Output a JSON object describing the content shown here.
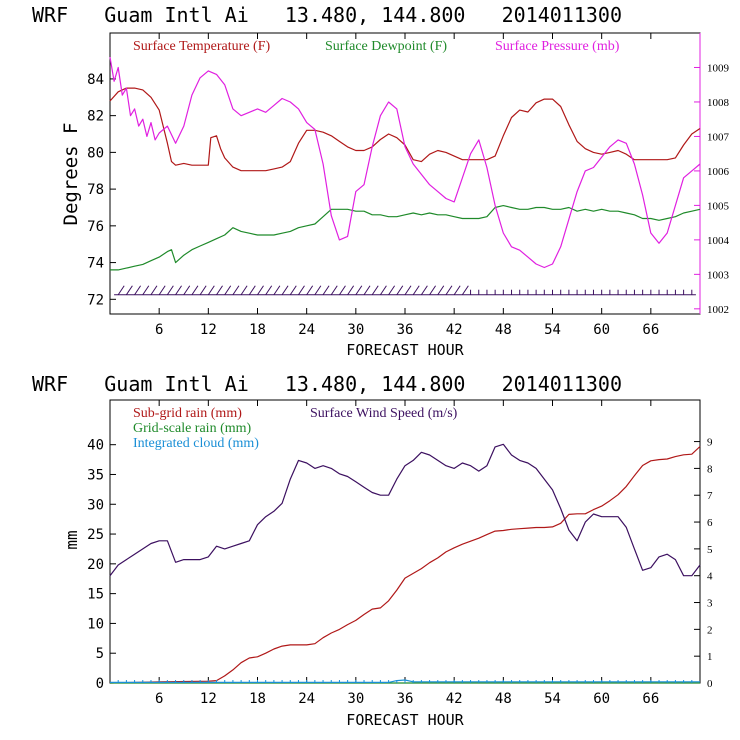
{
  "chart_data": [
    {
      "type": "line",
      "title": "WRF   Guam Intl Ai   13.480, 144.800   2014011300",
      "xlabel": "FORECAST HOUR",
      "ylabel": "Degrees F",
      "xlim": [
        0,
        72
      ],
      "ylim": [
        71.2,
        86.5
      ],
      "y2lim": [
        1001.85,
        1010.0
      ],
      "xticks": [
        6,
        12,
        18,
        24,
        30,
        36,
        42,
        48,
        54,
        60,
        66
      ],
      "xtick_labels": [
        "6",
        "12",
        "18",
        "24",
        "30",
        "36",
        "42",
        "48",
        "54",
        "60",
        "66"
      ],
      "yticks": [
        72,
        74,
        76,
        78,
        80,
        82,
        84
      ],
      "ytick_labels": [
        "72",
        "74",
        "76",
        "78",
        "80",
        "82",
        "84"
      ],
      "y2ticks": [
        1002,
        1003,
        1004,
        1005,
        1006,
        1007,
        1008,
        1009
      ],
      "y2tick_labels": [
        "1002",
        "1003",
        "1004",
        "1005",
        "1006",
        "1007",
        "1008",
        "1009"
      ],
      "legend_placement": "top",
      "series": [
        {
          "name": "Surface Temperature (F)",
          "color": "#b01818",
          "axis": "left",
          "x": [
            0,
            1,
            2,
            3,
            4,
            5,
            6,
            7,
            7.5,
            8,
            9,
            10,
            11,
            12,
            12.3,
            13,
            13.5,
            14,
            15,
            16,
            17,
            18,
            19,
            20,
            21,
            22,
            23,
            24,
            25,
            26,
            27,
            28,
            29,
            30,
            31,
            32,
            33,
            34,
            35,
            36,
            37,
            38,
            39,
            40,
            41,
            42,
            43,
            44,
            45,
            46,
            47,
            48,
            49,
            50,
            51,
            52,
            53,
            54,
            55,
            56,
            57,
            58,
            59,
            60,
            61,
            62,
            63,
            64,
            65,
            66,
            67,
            68,
            69,
            70,
            71,
            72
          ],
          "values": [
            82.8,
            83.3,
            83.5,
            83.5,
            83.4,
            83.0,
            82.3,
            80.5,
            79.5,
            79.3,
            79.4,
            79.3,
            79.3,
            79.3,
            80.8,
            80.9,
            80.2,
            79.7,
            79.2,
            79.0,
            79.0,
            79.0,
            79.0,
            79.1,
            79.2,
            79.5,
            80.5,
            81.2,
            81.2,
            81.1,
            80.9,
            80.6,
            80.3,
            80.1,
            80.1,
            80.3,
            80.7,
            81.0,
            80.8,
            80.4,
            79.6,
            79.5,
            79.9,
            80.1,
            80.0,
            79.8,
            79.6,
            79.6,
            79.6,
            79.6,
            79.8,
            80.9,
            81.9,
            82.3,
            82.2,
            82.7,
            82.9,
            82.9,
            82.5,
            81.5,
            80.6,
            80.2,
            80.0,
            79.9,
            80.0,
            80.1,
            79.9,
            79.6,
            79.6,
            79.6,
            79.6,
            79.6,
            79.7,
            80.4,
            81.0,
            81.3
          ]
        },
        {
          "name": "Surface Dewpoint (F)",
          "color": "#1f8a2a",
          "axis": "left",
          "x": [
            0,
            1,
            2,
            3,
            4,
            5,
            6,
            7,
            7.5,
            8,
            9,
            10,
            11,
            12,
            13,
            14,
            15,
            16,
            17,
            18,
            19,
            20,
            21,
            22,
            23,
            24,
            25,
            26,
            27,
            28,
            29,
            30,
            31,
            32,
            33,
            34,
            35,
            36,
            37,
            38,
            39,
            40,
            41,
            42,
            43,
            44,
            45,
            46,
            47,
            48,
            49,
            50,
            51,
            52,
            53,
            54,
            55,
            56,
            57,
            58,
            59,
            60,
            61,
            62,
            63,
            64,
            65,
            66,
            67,
            68,
            69,
            70,
            71,
            72
          ],
          "values": [
            73.6,
            73.6,
            73.7,
            73.8,
            73.9,
            74.1,
            74.3,
            74.6,
            74.7,
            74.0,
            74.4,
            74.7,
            74.9,
            75.1,
            75.3,
            75.5,
            75.9,
            75.7,
            75.6,
            75.5,
            75.5,
            75.5,
            75.6,
            75.7,
            75.9,
            76.0,
            76.1,
            76.5,
            76.9,
            76.9,
            76.9,
            76.8,
            76.8,
            76.6,
            76.6,
            76.5,
            76.5,
            76.6,
            76.7,
            76.6,
            76.7,
            76.6,
            76.6,
            76.5,
            76.4,
            76.4,
            76.4,
            76.5,
            77.0,
            77.1,
            77.0,
            76.9,
            76.9,
            77.0,
            77.0,
            76.9,
            76.9,
            77.0,
            76.8,
            76.9,
            76.8,
            76.9,
            76.8,
            76.8,
            76.7,
            76.6,
            76.4,
            76.4,
            76.3,
            76.4,
            76.5,
            76.7,
            76.8,
            76.9
          ]
        },
        {
          "name": "Surface Pressure (mb)",
          "color": "#e020e0",
          "axis": "right",
          "x": [
            0,
            0.5,
            1,
            1.5,
            2,
            2.5,
            3,
            3.5,
            4,
            4.5,
            5,
            5.5,
            6,
            7,
            8,
            9,
            10,
            11,
            12,
            13,
            14,
            15,
            16,
            17,
            18,
            19,
            20,
            21,
            22,
            23,
            24,
            25,
            26,
            27,
            28,
            29,
            30,
            31,
            32,
            33,
            34,
            35,
            36,
            37,
            38,
            39,
            40,
            41,
            42,
            43,
            44,
            45,
            46,
            47,
            48,
            49,
            50,
            51,
            52,
            53,
            54,
            55,
            56,
            57,
            58,
            59,
            60,
            61,
            62,
            63,
            64,
            65,
            66,
            67,
            68,
            69,
            70,
            71,
            72
          ],
          "values": [
            1009.3,
            1008.6,
            1009.0,
            1008.2,
            1008.4,
            1007.6,
            1007.8,
            1007.3,
            1007.5,
            1007.0,
            1007.4,
            1006.9,
            1007.1,
            1007.3,
            1006.8,
            1007.3,
            1008.2,
            1008.7,
            1008.9,
            1008.8,
            1008.5,
            1007.8,
            1007.6,
            1007.7,
            1007.8,
            1007.7,
            1007.9,
            1008.1,
            1008.0,
            1007.8,
            1007.4,
            1007.2,
            1006.2,
            1004.7,
            1004.0,
            1004.1,
            1005.4,
            1005.6,
            1006.7,
            1007.6,
            1008.0,
            1007.8,
            1006.7,
            1006.2,
            1005.9,
            1005.6,
            1005.4,
            1005.2,
            1005.1,
            1005.8,
            1006.5,
            1006.9,
            1006.1,
            1005.0,
            1004.2,
            1003.8,
            1003.7,
            1003.5,
            1003.3,
            1003.2,
            1003.3,
            1003.8,
            1004.6,
            1005.4,
            1006.0,
            1006.1,
            1006.4,
            1006.7,
            1006.9,
            1006.8,
            1006.2,
            1005.3,
            1004.2,
            1003.9,
            1004.2,
            1005.0,
            1005.8,
            1006.0,
            1006.2
          ]
        }
      ],
      "wind_barbs": "row of wind barbs along the bottom of the temperature panel"
    },
    {
      "type": "line",
      "title": "WRF   Guam Intl Ai   13.480, 144.800   2014011300",
      "xlabel": "FORECAST HOUR",
      "ylabel": "mm",
      "xlim": [
        0,
        72
      ],
      "ylim": [
        0,
        47.5
      ],
      "y2lim": [
        0,
        10.55
      ],
      "xticks": [
        6,
        12,
        18,
        24,
        30,
        36,
        42,
        48,
        54,
        60,
        66
      ],
      "xtick_labels": [
        "6",
        "12",
        "18",
        "24",
        "30",
        "36",
        "42",
        "48",
        "54",
        "60",
        "66"
      ],
      "yticks": [
        0,
        5,
        10,
        15,
        20,
        25,
        30,
        35,
        40
      ],
      "ytick_labels": [
        "0",
        "5",
        "10",
        "15",
        "20",
        "25",
        "30",
        "35",
        "40"
      ],
      "y2ticks": [
        0,
        1,
        2,
        3,
        4,
        5,
        6,
        7,
        8,
        9
      ],
      "y2tick_labels": [
        "0",
        "1",
        "2",
        "3",
        "4",
        "5",
        "6",
        "7",
        "8",
        "9"
      ],
      "legend_placement": "top-left",
      "series": [
        {
          "name": "Sub-grid rain (mm)",
          "color": "#b01818",
          "axis": "left",
          "x": [
            0,
            6,
            12,
            13,
            14,
            15,
            16,
            17,
            18,
            19,
            20,
            21,
            22,
            23,
            24,
            25,
            26,
            27,
            28,
            29,
            30,
            31,
            32,
            33,
            34,
            35,
            36,
            37,
            38,
            39,
            40,
            41,
            42,
            43,
            44,
            45,
            46,
            47,
            48,
            49,
            50,
            51,
            52,
            53,
            54,
            55,
            56,
            57,
            58,
            59,
            60,
            61,
            62,
            63,
            64,
            65,
            66,
            67,
            68,
            69,
            70,
            71,
            72
          ],
          "values": [
            0,
            0.2,
            0.3,
            0.4,
            1.2,
            2.2,
            3.4,
            4.2,
            4.4,
            5.0,
            5.7,
            6.2,
            6.4,
            6.4,
            6.4,
            6.6,
            7.6,
            8.4,
            9.0,
            9.8,
            10.5,
            11.5,
            12.4,
            12.6,
            13.8,
            15.6,
            17.6,
            18.4,
            19.2,
            20.2,
            21.0,
            22.0,
            22.7,
            23.3,
            23.8,
            24.3,
            24.9,
            25.5,
            25.6,
            25.8,
            25.9,
            26.0,
            26.1,
            26.1,
            26.2,
            26.8,
            28.3,
            28.4,
            28.4,
            29.1,
            29.7,
            30.6,
            31.6,
            33.0,
            34.8,
            36.5,
            37.3,
            37.5,
            37.6,
            38.0,
            38.3,
            38.4,
            39.7
          ]
        },
        {
          "name": "Grid-scale rain (mm)",
          "color": "#1f8a2a",
          "axis": "left",
          "x": [
            0,
            72
          ],
          "values": [
            0,
            0
          ]
        },
        {
          "name": "Integrated cloud (mm)",
          "color": "#1a8fd6",
          "axis": "left",
          "x": [
            0,
            34,
            35,
            36,
            37,
            72
          ],
          "values": [
            0.1,
            0.1,
            0.4,
            0.5,
            0.2,
            0.2
          ]
        },
        {
          "name": "Surface Wind Speed (m/s)",
          "color": "#3c1060",
          "axis": "right",
          "x": [
            0,
            1,
            2,
            3,
            4,
            5,
            6,
            7,
            8,
            9,
            10,
            11,
            12,
            13,
            14,
            15,
            16,
            17,
            18,
            19,
            20,
            21,
            22,
            23,
            24,
            25,
            26,
            27,
            28,
            29,
            30,
            31,
            32,
            33,
            34,
            35,
            36,
            37,
            38,
            39,
            40,
            41,
            42,
            43,
            44,
            45,
            46,
            47,
            48,
            49,
            50,
            51,
            52,
            53,
            54,
            55,
            56,
            57,
            58,
            59,
            60,
            61,
            62,
            63,
            64,
            65,
            66,
            67,
            68,
            69,
            70,
            71,
            72
          ],
          "values": [
            4.0,
            4.4,
            4.6,
            4.8,
            5.0,
            5.2,
            5.3,
            5.3,
            4.5,
            4.6,
            4.6,
            4.6,
            4.7,
            5.1,
            5.0,
            5.1,
            5.2,
            5.3,
            5.9,
            6.2,
            6.4,
            6.7,
            7.6,
            8.3,
            8.2,
            8.0,
            8.1,
            8.0,
            7.8,
            7.7,
            7.5,
            7.3,
            7.1,
            7.0,
            7.0,
            7.6,
            8.1,
            8.3,
            8.6,
            8.5,
            8.3,
            8.1,
            8.0,
            8.2,
            8.1,
            7.9,
            8.1,
            8.8,
            8.9,
            8.5,
            8.3,
            8.2,
            8.0,
            7.6,
            7.2,
            6.5,
            5.7,
            5.3,
            6.0,
            6.3,
            6.2,
            6.2,
            6.2,
            5.8,
            5.0,
            4.2,
            4.3,
            4.7,
            4.8,
            4.6,
            4.0,
            4.0,
            4.4
          ]
        }
      ]
    }
  ]
}
